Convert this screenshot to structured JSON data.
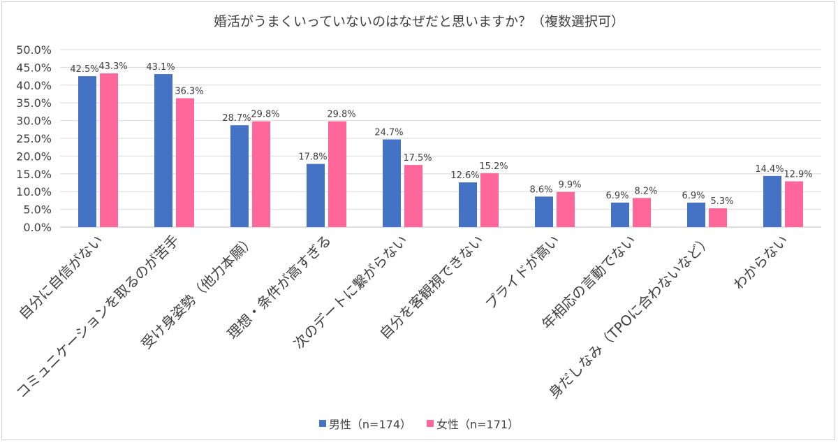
{
  "chart_data": {
    "type": "bar",
    "title": "婚活がうまくいっていないのはなぜだと思いますか？（複数選択可）",
    "categories": [
      "自分に自信がない",
      "コミュニケーションを取るのが苦手",
      "受け身姿勢（他力本願）",
      "理想・条件が高すぎる",
      "次のデートに繋がらない",
      "自分を客観視できない",
      "プライドが高い",
      "年相応の言動でない",
      "身だしなみ（TPOに合わないなど）",
      "わからない"
    ],
    "series": [
      {
        "name": "男性（n=174）",
        "color": "#4472c4",
        "values": [
          42.5,
          43.1,
          28.7,
          17.8,
          24.7,
          12.6,
          8.6,
          6.9,
          6.9,
          14.4
        ],
        "labels": [
          "42.5%",
          "43.1%",
          "28.7%",
          "17.8%",
          "24.7%",
          "12.6%",
          "8.6%",
          "6.9%",
          "6.9%",
          "14.4%"
        ]
      },
      {
        "name": "女性（n=171）",
        "color": "#ff6699",
        "values": [
          43.3,
          36.3,
          29.8,
          29.8,
          17.5,
          15.2,
          9.9,
          8.2,
          5.3,
          12.9
        ],
        "labels": [
          "43.3%",
          "36.3%",
          "29.8%",
          "29.8%",
          "17.5%",
          "15.2%",
          "9.9%",
          "8.2%",
          "5.3%",
          "12.9%"
        ]
      }
    ],
    "yticks": [
      "0.0%",
      "5.0%",
      "10.0%",
      "15.0%",
      "20.0%",
      "25.0%",
      "30.0%",
      "35.0%",
      "40.0%",
      "45.0%",
      "50.0%"
    ],
    "ylim": [
      0,
      50
    ],
    "grid": true,
    "legend_position": "bottom"
  }
}
